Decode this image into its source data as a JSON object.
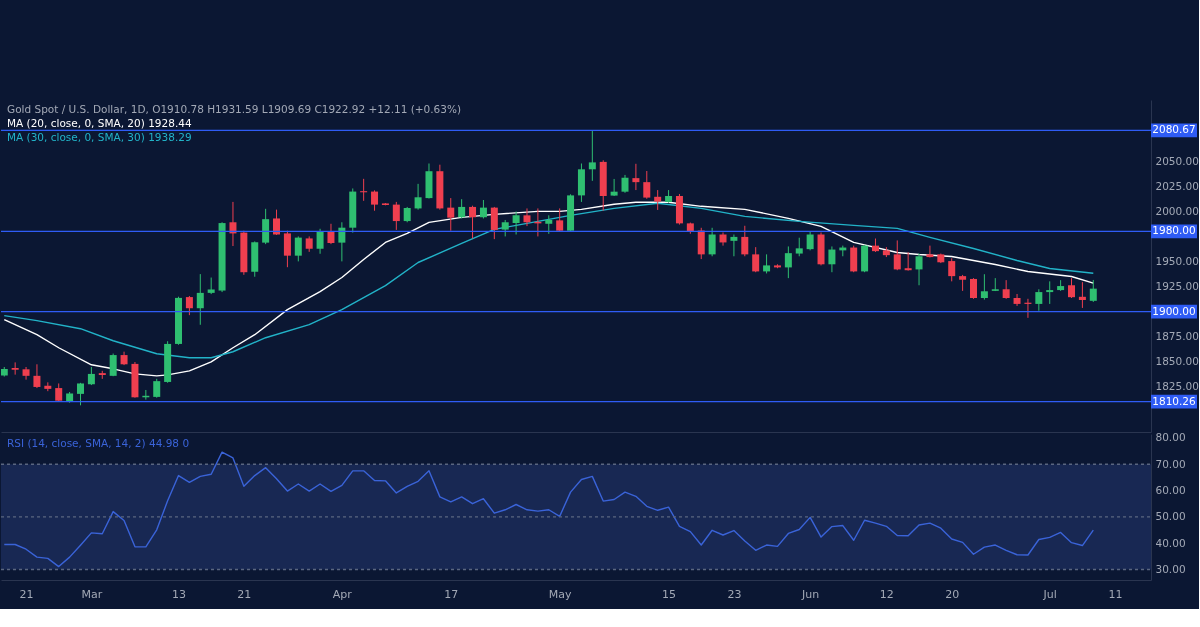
{
  "chart_data": [
    {
      "type": "candlestick",
      "title": "Gold Spot / U.S. Dollar, 1D, O1910.78 H1931.59 L1909.69 C1922.92 +12.11 (+0.63%)",
      "legend": "top left",
      "tick_labels": "y",
      "grid": false,
      "categories": [
        null,
        null,
        null,
        null,
        null,
        null,
        null,
        null,
        null,
        null,
        null,
        null,
        null,
        null,
        null,
        null,
        null,
        null,
        null,
        null,
        null,
        null,
        null,
        null,
        null,
        null,
        null,
        null,
        null,
        null,
        null,
        null,
        null,
        null,
        null,
        null,
        null,
        null,
        null,
        null,
        null,
        null,
        null,
        null,
        null,
        null,
        null,
        null,
        null,
        null,
        null,
        null,
        null,
        null,
        null,
        null,
        null,
        null,
        null,
        null,
        null,
        null,
        null,
        null,
        null,
        null,
        null,
        null,
        null,
        null,
        null,
        null,
        null,
        null,
        null,
        null,
        null,
        null,
        null,
        null,
        null,
        null,
        null,
        null,
        null,
        null,
        null,
        null,
        null,
        null,
        null,
        null,
        null,
        null,
        null,
        null,
        null,
        null,
        null,
        null,
        null,
        null,
        null,
        null,
        null,
        null
      ],
      "ohlc": [
        [
          1836.4,
          1844.8,
          1835.3,
          1842.9
        ],
        [
          1843.7,
          1849.4,
          1837.2,
          1842.1
        ],
        [
          1842.5,
          1844.8,
          1832.2,
          1836.0
        ],
        [
          1836.0,
          1847.5,
          1823.8,
          1824.9
        ],
        [
          1826.1,
          1829.5,
          1820.7,
          1823.0
        ],
        [
          1823.8,
          1828.4,
          1810.4,
          1811.2
        ],
        [
          1810.8,
          1819.9,
          1809.2,
          1818.4
        ],
        [
          1818.0,
          1829.0,
          1806.6,
          1828.4
        ],
        [
          1827.6,
          1844.8,
          1826.8,
          1837.9
        ],
        [
          1838.7,
          1841.0,
          1833.0,
          1836.8
        ],
        [
          1836.0,
          1858.2,
          1835.6,
          1856.7
        ],
        [
          1856.7,
          1860.1,
          1846.7,
          1847.5
        ],
        [
          1847.9,
          1849.8,
          1814.2,
          1814.6
        ],
        [
          1814.6,
          1821.9,
          1812.3,
          1816.1
        ],
        [
          1815.0,
          1833.0,
          1814.2,
          1830.7
        ],
        [
          1829.9,
          1870.5,
          1829.1,
          1867.8
        ],
        [
          1867.8,
          1914.9,
          1867.0,
          1913.7
        ],
        [
          1914.5,
          1915.6,
          1896.5,
          1903.4
        ],
        [
          1903.4,
          1937.4,
          1886.9,
          1918.7
        ],
        [
          1918.7,
          1934.0,
          1917.5,
          1922.1
        ],
        [
          1921.0,
          1989.1,
          1919.5,
          1988.3
        ],
        [
          1989.1,
          2009.4,
          1965.4,
          1978.0
        ],
        [
          1978.8,
          1980.7,
          1936.7,
          1939.3
        ],
        [
          1939.7,
          1970.0,
          1934.8,
          1969.2
        ],
        [
          1968.8,
          2002.5,
          1967.3,
          1992.2
        ],
        [
          1992.9,
          2001.7,
          1976.5,
          1976.9
        ],
        [
          1978.0,
          1980.7,
          1944.3,
          1955.8
        ],
        [
          1955.8,
          1975.0,
          1950.1,
          1973.8
        ],
        [
          1973.0,
          1975.0,
          1959.6,
          1962.7
        ],
        [
          1962.7,
          1982.6,
          1957.7,
          1979.9
        ],
        [
          1979.9,
          1987.6,
          1967.3,
          1968.4
        ],
        [
          1968.8,
          1989.1,
          1950.1,
          1983.7
        ],
        [
          1983.7,
          2022.8,
          1978.8,
          2019.7
        ],
        [
          2020.1,
          2032.4,
          2010.5,
          2019.0
        ],
        [
          2019.7,
          2020.9,
          2000.6,
          2006.7
        ],
        [
          2007.9,
          2008.3,
          2006.0,
          2006.3
        ],
        [
          2006.7,
          2009.4,
          1981.5,
          1990.3
        ],
        [
          1990.3,
          2004.4,
          1989.1,
          2003.3
        ],
        [
          2002.9,
          2027.4,
          2001.7,
          2014.0
        ],
        [
          2013.2,
          2047.7,
          2012.8,
          2040.0
        ],
        [
          2040.0,
          2046.5,
          2001.7,
          2002.9
        ],
        [
          2003.7,
          2013.2,
          1980.7,
          1993.7
        ],
        [
          1994.1,
          2012.1,
          1992.9,
          2004.4
        ],
        [
          2004.4,
          2005.6,
          1973.0,
          1994.1
        ],
        [
          1994.1,
          2011.3,
          1992.9,
          2003.7
        ],
        [
          2003.7,
          2004.4,
          1972.3,
          1981.5
        ],
        [
          1981.8,
          1991.4,
          1975.0,
          1989.1
        ],
        [
          1988.3,
          1999.8,
          1976.9,
          1996.0
        ],
        [
          1996.0,
          2002.9,
          1985.3,
          1989.1
        ],
        [
          1989.5,
          2002.9,
          1975.0,
          1988.0
        ],
        [
          1987.6,
          1996.0,
          1977.6,
          1991.4
        ],
        [
          1991.0,
          2002.9,
          1979.9,
          1980.7
        ],
        [
          1980.7,
          2017.0,
          1979.9,
          2015.9
        ],
        [
          2015.9,
          2047.7,
          2009.4,
          2041.9
        ],
        [
          2041.9,
          2080.67,
          2030.4,
          2048.8
        ],
        [
          2049.3,
          2050.9,
          2000.7,
          2015.3
        ],
        [
          2015.7,
          2032.3,
          2015.3,
          2019.6
        ],
        [
          2019.6,
          2036.3,
          2018.5,
          2033.5
        ],
        [
          2033.1,
          2047.4,
          2021.2,
          2029.1
        ],
        [
          2029.1,
          2040.2,
          2012.5,
          2013.7
        ],
        [
          2014.5,
          2021.2,
          2001.4,
          2009.8
        ],
        [
          2009.4,
          2021.2,
          2008.6,
          2015.3
        ],
        [
          2015.3,
          2017.3,
          1986.8,
          1988.0
        ],
        [
          1988.0,
          1988.8,
          1977.7,
          1980.1
        ],
        [
          1980.9,
          1983.6,
          1952.4,
          1957.1
        ],
        [
          1957.1,
          1983.6,
          1955.2,
          1976.9
        ],
        [
          1976.9,
          1978.9,
          1965.8,
          1969.0
        ],
        [
          1970.6,
          1976.9,
          1955.2,
          1974.5
        ],
        [
          1974.5,
          1985.6,
          1955.2,
          1957.1
        ],
        [
          1957.1,
          1964.3,
          1939.3,
          1940.1
        ],
        [
          1940.1,
          1957.1,
          1938.1,
          1946.1
        ],
        [
          1946.1,
          1947.2,
          1943.3,
          1944.1
        ],
        [
          1944.1,
          1965.0,
          1933.4,
          1958.3
        ],
        [
          1957.9,
          1973.7,
          1955.2,
          1963.1
        ],
        [
          1962.3,
          1979.7,
          1961.1,
          1976.9
        ],
        [
          1976.9,
          1978.9,
          1946.1,
          1947.2
        ],
        [
          1947.2,
          1965.0,
          1939.3,
          1961.9
        ],
        [
          1961.1,
          1965.8,
          1955.2,
          1963.9
        ],
        [
          1963.9,
          1965.8,
          1939.3,
          1940.1
        ],
        [
          1940.1,
          1966.6,
          1939.3,
          1965.8
        ],
        [
          1965.8,
          1972.9,
          1959.5,
          1960.3
        ],
        [
          1961.1,
          1964.3,
          1954.4,
          1956.3
        ],
        [
          1957.1,
          1971.0,
          1941.3,
          1942.1
        ],
        [
          1943.3,
          1959.1,
          1940.9,
          1941.3
        ],
        [
          1942.1,
          1957.9,
          1926.3,
          1955.2
        ],
        [
          1957.1,
          1965.8,
          1954.0,
          1954.4
        ],
        [
          1957.1,
          1957.9,
          1948.4,
          1949.2
        ],
        [
          1950.4,
          1953.2,
          1930.2,
          1935.4
        ],
        [
          1935.4,
          1936.6,
          1920.7,
          1931.8
        ],
        [
          1932.6,
          1933.4,
          1912.8,
          1913.6
        ],
        [
          1913.6,
          1937.3,
          1912.0,
          1920.3
        ],
        [
          1920.7,
          1933.4,
          1920.5,
          1922.3
        ],
        [
          1922.3,
          1931.4,
          1912.8,
          1913.6
        ],
        [
          1913.6,
          1917.6,
          1905.7,
          1907.7
        ],
        [
          1908.9,
          1912.8,
          1893.8,
          1907.7
        ],
        [
          1907.7,
          1922.3,
          1900.9,
          1919.5
        ],
        [
          1919.5,
          1930.2,
          1907.7,
          1921.5
        ],
        [
          1921.5,
          1931.4,
          1920.7,
          1925.5
        ],
        [
          1926.3,
          1933.4,
          1913.6,
          1914.4
        ],
        [
          1914.8,
          1929.4,
          1903.7,
          1911.6
        ],
        [
          1910.78,
          1931.59,
          1909.69,
          1922.92
        ],
        null,
        null,
        null,
        null,
        null
      ],
      "colors": [
        "#2fbf71",
        "#ef3f4f",
        "#ef3f4f",
        "#ef3f4f",
        "#ef3f4f",
        "#ef3f4f",
        "#2fbf71",
        "#2fbf71",
        "#2fbf71",
        "#ef3f4f",
        "#2fbf71",
        "#ef3f4f",
        "#ef3f4f",
        "#2fbf71",
        "#2fbf71",
        "#2fbf71",
        "#2fbf71",
        "#ef3f4f",
        "#2fbf71",
        "#2fbf71",
        "#2fbf71",
        "#ef3f4f",
        "#ef3f4f",
        "#2fbf71",
        "#2fbf71",
        "#ef3f4f",
        "#ef3f4f",
        "#2fbf71",
        "#ef3f4f",
        "#2fbf71",
        "#ef3f4f",
        "#2fbf71",
        "#2fbf71",
        "#ef3f4f",
        "#ef3f4f",
        "#ef3f4f",
        "#ef3f4f",
        "#2fbf71",
        "#2fbf71",
        "#2fbf71",
        "#ef3f4f",
        "#ef3f4f",
        "#2fbf71",
        "#ef3f4f",
        "#2fbf71",
        "#ef3f4f",
        "#2fbf71",
        "#2fbf71",
        "#ef3f4f",
        "#ef3f4f",
        "#2fbf71",
        "#ef3f4f",
        "#2fbf71",
        "#2fbf71",
        "#2fbf71",
        "#ef3f4f",
        "#2fbf71",
        "#2fbf71",
        "#ef3f4f",
        "#ef3f4f",
        "#ef3f4f",
        "#2fbf71",
        "#ef3f4f",
        "#ef3f4f",
        "#ef3f4f",
        "#2fbf71",
        "#ef3f4f",
        "#2fbf71",
        "#ef3f4f",
        "#ef3f4f",
        "#2fbf71",
        "#ef3f4f",
        "#2fbf71",
        "#2fbf71",
        "#2fbf71",
        "#ef3f4f",
        "#2fbf71",
        "#2fbf71",
        "#ef3f4f",
        "#2fbf71",
        "#ef3f4f",
        "#ef3f4f",
        "#ef3f4f",
        "#ef3f4f",
        "#2fbf71",
        "#ef3f4f",
        "#ef3f4f",
        "#ef3f4f",
        "#ef3f4f",
        "#ef3f4f",
        "#2fbf71",
        "#2fbf71",
        "#ef3f4f",
        "#ef3f4f",
        "#ef3f4f",
        "#2fbf71",
        "#2fbf71",
        "#2fbf71",
        "#ef3f4f",
        "#ef3f4f",
        "#2fbf71",
        null,
        null,
        null,
        null,
        null
      ],
      "series": [
        {
          "name": "MA (20, close, 0, SMA, 20) 1928.44",
          "type": "line",
          "color": "#ffffff",
          "values": [
            1892,
            null,
            null,
            1877,
            null,
            1864,
            null,
            null,
            1847,
            null,
            1843,
            null,
            1838,
            null,
            1836,
            1837,
            null,
            1841,
            null,
            1850,
            null,
            1864,
            null,
            1877,
            null,
            null,
            1902,
            null,
            null,
            1920,
            null,
            1934,
            null,
            1952,
            null,
            1969,
            null,
            1978,
            null,
            1989,
            null,
            null,
            1994,
            null,
            null,
            1997,
            null,
            null,
            null,
            2000,
            null,
            2000,
            null,
            2002,
            null,
            null,
            2007,
            null,
            2009,
            null,
            null,
            2009,
            null,
            null,
            2005,
            null,
            null,
            null,
            2002,
            null,
            null,
            null,
            1993,
            null,
            null,
            1985,
            null,
            null,
            1969,
            null,
            null,
            null,
            1959,
            null,
            1957,
            null,
            null,
            1955,
            null,
            null,
            null,
            1947,
            null,
            null,
            1940,
            null,
            null,
            null,
            1935,
            null,
            1928.44,
            null,
            null,
            null,
            null,
            null
          ]
        },
        {
          "name": "MA (30, close, 0, SMA, 30) 1938.29",
          "type": "line",
          "color": "#22b3c8",
          "values": [
            1896,
            null,
            null,
            1891,
            null,
            null,
            null,
            1883,
            null,
            null,
            1871,
            null,
            null,
            null,
            1858,
            null,
            null,
            1854,
            null,
            1854,
            null,
            1860,
            null,
            null,
            1874,
            null,
            null,
            null,
            1887,
            null,
            null,
            1902,
            null,
            null,
            null,
            1926,
            null,
            null,
            1949,
            null,
            null,
            null,
            1968,
            null,
            null,
            1982,
            null,
            null,
            null,
            1990,
            null,
            null,
            1996,
            null,
            null,
            null,
            2003,
            null,
            null,
            null,
            2008,
            null,
            null,
            null,
            2003,
            null,
            null,
            null,
            1995,
            null,
            null,
            null,
            null,
            1990,
            null,
            null,
            null,
            null,
            1986,
            null,
            null,
            null,
            1983,
            null,
            null,
            1974,
            null,
            null,
            null,
            1963,
            null,
            null,
            null,
            1951,
            null,
            null,
            1943,
            null,
            null,
            null,
            1938.29,
            null,
            null,
            null,
            null,
            null
          ]
        }
      ],
      "ylim": [
        1780,
        2111
      ],
      "yticks": [
        {
          "value": 1825,
          "label": "1825.00"
        },
        {
          "value": 1850,
          "label": "1850.00"
        },
        {
          "value": 1875,
          "label": "1875.00"
        },
        {
          "value": 1925,
          "label": "1925.00"
        },
        {
          "value": 1950,
          "label": "1950.00"
        },
        {
          "value": 2000,
          "label": "2000.00"
        },
        {
          "value": 2025,
          "label": "2025.00"
        },
        {
          "value": 2050,
          "label": "2050.00"
        }
      ],
      "ref_lines": [
        {
          "axis": "y",
          "value": 2080.67,
          "label": "2080.67",
          "color": "#2f5cf5"
        },
        {
          "axis": "y",
          "value": 1980.0,
          "label": "1980.00",
          "color": "#2f5cf5"
        },
        {
          "axis": "y",
          "value": 1900.0,
          "label": "1900.00",
          "color": "#2f5cf5"
        },
        {
          "axis": "y",
          "value": 1810.26,
          "label": "1810.26",
          "color": "#2f5cf5"
        }
      ]
    },
    {
      "type": "line",
      "legend": "top left",
      "grid": false,
      "categories": [
        null,
        null,
        "21",
        null,
        null,
        null,
        null,
        null,
        "Mar",
        null,
        null,
        null,
        null,
        null,
        null,
        null,
        "13",
        null,
        null,
        null,
        null,
        null,
        "21",
        null,
        null,
        null,
        null,
        null,
        null,
        null,
        null,
        "Apr",
        null,
        null,
        null,
        null,
        null,
        null,
        null,
        null,
        null,
        "17",
        null,
        null,
        null,
        null,
        null,
        null,
        null,
        null,
        null,
        "May",
        null,
        null,
        null,
        null,
        null,
        null,
        null,
        null,
        null,
        "15",
        null,
        null,
        null,
        null,
        null,
        "23",
        null,
        null,
        null,
        null,
        null,
        null,
        "Jun",
        null,
        null,
        null,
        null,
        null,
        null,
        "12",
        null,
        null,
        null,
        null,
        null,
        "20",
        null,
        null,
        null,
        null,
        null,
        null,
        null,
        null,
        "Jul",
        null,
        null,
        null,
        null,
        null,
        "11",
        null,
        null,
        null
      ],
      "series": [
        {
          "name": "RSI (14, close, SMA, 14, 2) 44.98 0",
          "color": "#3a63d8",
          "values": [
            39.5,
            39.5,
            37.7,
            34.7,
            34.2,
            31.1,
            34.7,
            39.2,
            43.9,
            43.6,
            52.0,
            48.6,
            38.6,
            38.6,
            45.1,
            56.1,
            65.7,
            63.1,
            65.4,
            66.2,
            74.6,
            72.4,
            61.6,
            65.7,
            68.7,
            64.5,
            59.8,
            62.5,
            59.8,
            62.5,
            59.7,
            62.0,
            67.5,
            67.5,
            63.8,
            63.7,
            59.1,
            61.6,
            63.5,
            67.5,
            57.6,
            55.7,
            57.6,
            55.0,
            56.9,
            51.4,
            52.7,
            54.7,
            52.7,
            52.2,
            52.7,
            50.2,
            59.4,
            64.2,
            65.4,
            56.0,
            56.6,
            59.4,
            57.8,
            54.0,
            52.5,
            53.7,
            46.4,
            44.4,
            39.3,
            44.9,
            43.1,
            44.8,
            40.8,
            37.3,
            39.3,
            38.8,
            43.7,
            45.2,
            49.8,
            42.3,
            46.3,
            46.7,
            41.1,
            48.7,
            47.6,
            46.4,
            42.9,
            42.8,
            46.9,
            47.6,
            45.7,
            41.6,
            40.3,
            35.8,
            38.5,
            39.3,
            37.3,
            35.6,
            35.5,
            41.4,
            42.2,
            44.1,
            40.2,
            39.1,
            44.98,
            null,
            null,
            null,
            null,
            null
          ]
        }
      ],
      "ylim": [
        26,
        81.5
      ],
      "yticks": [
        {
          "value": 30,
          "label": "30.00"
        },
        {
          "value": 40,
          "label": "40.00"
        },
        {
          "value": 50,
          "label": "50.00"
        },
        {
          "value": 60,
          "label": "60.00"
        },
        {
          "value": 70,
          "label": "70.00"
        },
        {
          "value": 80,
          "label": "80.00"
        }
      ],
      "ref_lines": [
        {
          "axis": "y",
          "value": 70,
          "line_style": "dashed",
          "color": "#5a6680"
        },
        {
          "axis": "y",
          "value": 50,
          "line_style": "dashed",
          "color": "#5a6680"
        },
        {
          "axis": "y",
          "value": 30,
          "line_style": "dashed",
          "color": "#5a6680"
        }
      ],
      "bands": [
        {
          "axis": "y",
          "from": 30,
          "to": 70,
          "color": "#1a2a57"
        }
      ]
    }
  ]
}
